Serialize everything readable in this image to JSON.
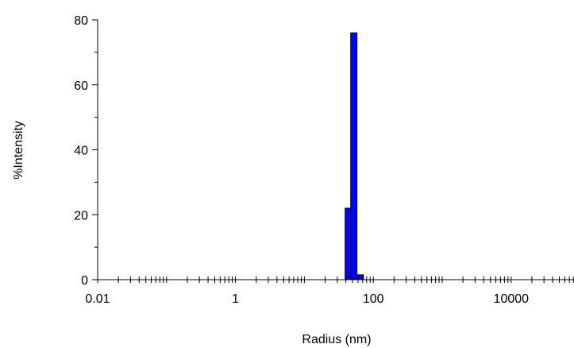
{
  "chart_data": {
    "type": "bar",
    "title": "",
    "xlabel": "Radius (nm)",
    "ylabel": "%Intensity",
    "x_scale": "log",
    "xlim": [
      0.01,
      100000
    ],
    "ylim": [
      0,
      80
    ],
    "x_ticks": [
      {
        "value": 0.01,
        "label": "0.01"
      },
      {
        "value": 1,
        "label": "1"
      },
      {
        "value": 100,
        "label": "100"
      },
      {
        "value": 10000,
        "label": "10000"
      }
    ],
    "y_ticks": [
      {
        "value": 0,
        "label": "0"
      },
      {
        "value": 20,
        "label": "20"
      },
      {
        "value": 40,
        "label": "40"
      },
      {
        "value": 60,
        "label": "60"
      },
      {
        "value": 80,
        "label": "80"
      }
    ],
    "bars": [
      {
        "x_from": 39.0,
        "x_to": 47.0,
        "value": 22
      },
      {
        "x_from": 47.0,
        "x_to": 58.0,
        "value": 76
      },
      {
        "x_from": 58.0,
        "x_to": 72.0,
        "value": 1.5
      }
    ],
    "grid": false,
    "colors": {
      "bar": "#0000ff",
      "axis": "#000000"
    }
  }
}
